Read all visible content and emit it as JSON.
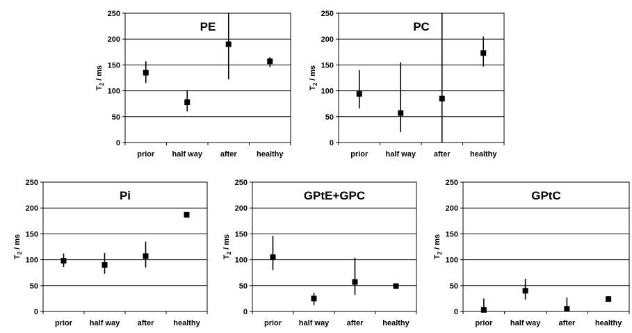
{
  "chart_data": [
    {
      "type": "scatter",
      "title": "PE",
      "ylabel": "T2 / ms",
      "ylim": [
        0,
        250
      ],
      "yticks": [
        0,
        50,
        100,
        150,
        200,
        250
      ],
      "grid": true,
      "categories": [
        "prior",
        "half way",
        "after",
        "healthy"
      ],
      "values": [
        135,
        78,
        190,
        157
      ],
      "error_low": [
        115,
        60,
        122,
        146
      ],
      "error_high": [
        157,
        101,
        255,
        165
      ]
    },
    {
      "type": "scatter",
      "title": "PC",
      "ylabel": "T2 / ms",
      "ylim": [
        0,
        250
      ],
      "yticks": [
        0,
        50,
        100,
        150,
        200,
        250
      ],
      "grid": true,
      "categories": [
        "prior",
        "half way",
        "after",
        "healthy"
      ],
      "values": [
        94,
        57,
        85,
        173
      ],
      "error_low": [
        66,
        20,
        0,
        147
      ],
      "error_high": [
        140,
        155,
        255,
        205
      ]
    },
    {
      "type": "scatter",
      "title": "Pi",
      "ylabel": "T2 / ms",
      "ylim": [
        0,
        250
      ],
      "yticks": [
        0,
        50,
        100,
        150,
        200,
        250
      ],
      "grid": true,
      "categories": [
        "prior",
        "half way",
        "after",
        "healthy"
      ],
      "values": [
        98,
        90,
        107,
        187
      ],
      "error_low": [
        86,
        73,
        85,
        182
      ],
      "error_high": [
        112,
        113,
        135,
        192
      ]
    },
    {
      "type": "scatter",
      "title": "GPtE+GPC",
      "ylabel": "T2 / ms",
      "ylim": [
        0,
        250
      ],
      "yticks": [
        0,
        50,
        100,
        150,
        200,
        250
      ],
      "grid": true,
      "categories": [
        "prior",
        "half way",
        "after",
        "healthy"
      ],
      "values": [
        105,
        25,
        57,
        49
      ],
      "error_low": [
        80,
        12,
        32,
        45
      ],
      "error_high": [
        146,
        36,
        104,
        53
      ]
    },
    {
      "type": "scatter",
      "title": "GPtC",
      "ylabel": "T2 / ms",
      "ylim": [
        0,
        250
      ],
      "yticks": [
        0,
        50,
        100,
        150,
        200,
        250
      ],
      "grid": true,
      "categories": [
        "prior",
        "half way",
        "after",
        "healthy"
      ],
      "values": [
        3,
        40,
        5,
        24
      ],
      "error_low": [
        0,
        23,
        0,
        20
      ],
      "error_high": [
        25,
        63,
        27,
        28
      ]
    }
  ]
}
